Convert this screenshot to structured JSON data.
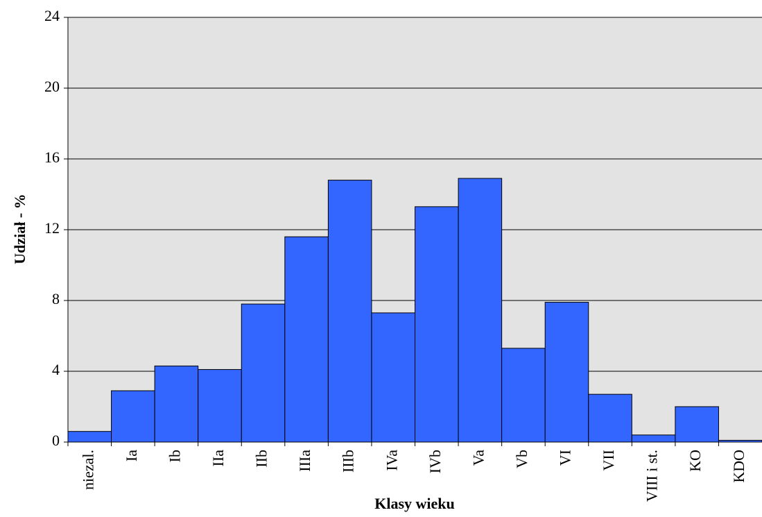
{
  "chart_data": {
    "type": "bar",
    "x_label": "Klasy wieku",
    "y_label": "Udział - %",
    "categories": [
      "niezal.",
      "Ia",
      "Ib",
      "IIa",
      "IIb",
      "IIIa",
      "IIIb",
      "IVa",
      "IVb",
      "Va",
      "Vb",
      "VI",
      "VII",
      "VIII i st.",
      "KO",
      "KDO"
    ],
    "values": [
      0.6,
      2.9,
      4.3,
      4.1,
      7.8,
      11.6,
      14.8,
      7.3,
      13.3,
      14.9,
      5.3,
      7.9,
      2.7,
      0.4,
      2.0,
      0.1
    ],
    "color": "#3366ff",
    "ylim": [
      0,
      24
    ],
    "yticks": [
      0,
      4,
      8,
      12,
      16,
      20,
      24
    ],
    "grid": true
  }
}
